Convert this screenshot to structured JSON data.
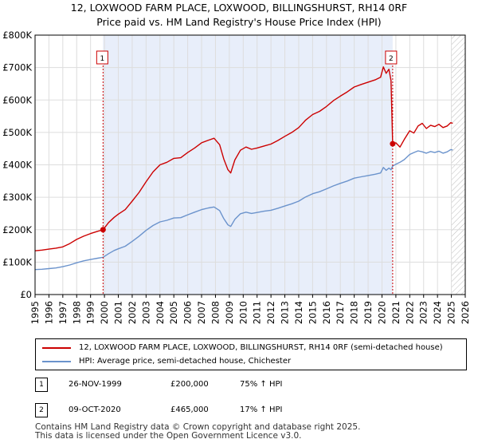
{
  "title_line1": "12, LOXWOOD FARM PLACE, LOXWOOD, BILLINGSHURST, RH14 0RF",
  "title_line2": "Price paid vs. HM Land Registry's House Price Index (HPI)",
  "colors": {
    "price_line": "#cc0000",
    "hpi_line": "#6b93cc",
    "shade": "#e8eefa",
    "grid": "#dddddd",
    "hatch": "#bbbbbb"
  },
  "chart_data": {
    "type": "line",
    "xlim": [
      1995,
      2026
    ],
    "ylim": [
      0,
      800000
    ],
    "y_ticks": [
      {
        "value": 0,
        "label": "£0"
      },
      {
        "value": 100000,
        "label": "£100K"
      },
      {
        "value": 200000,
        "label": "£200K"
      },
      {
        "value": 300000,
        "label": "£300K"
      },
      {
        "value": 400000,
        "label": "£400K"
      },
      {
        "value": 500000,
        "label": "£500K"
      },
      {
        "value": 600000,
        "label": "£600K"
      },
      {
        "value": 700000,
        "label": "£700K"
      },
      {
        "value": 800000,
        "label": "£800K"
      }
    ],
    "x_ticks": [
      "1995",
      "1996",
      "1997",
      "1998",
      "1999",
      "2000",
      "2001",
      "2002",
      "2003",
      "2004",
      "2005",
      "2006",
      "2007",
      "2008",
      "2009",
      "2010",
      "2011",
      "2012",
      "2013",
      "2014",
      "2015",
      "2016",
      "2017",
      "2018",
      "2019",
      "2020",
      "2021",
      "2022",
      "2023",
      "2024",
      "2025",
      "2026"
    ],
    "shaded_period": [
      1999.9,
      2020.77
    ],
    "future_hatch_from": 2025.0,
    "series": [
      {
        "name": "12, LOXWOOD FARM PLACE, LOXWOOD, BILLINGSHURST, RH14 0RF (semi-detached house)",
        "color": "#cc0000",
        "x": [
          1995.0,
          1995.5,
          1996.0,
          1996.5,
          1997.0,
          1997.5,
          1998.0,
          1998.5,
          1999.0,
          1999.5,
          1999.9,
          2000.3,
          2000.7,
          2001.0,
          2001.5,
          2002.0,
          2002.5,
          2003.0,
          2003.5,
          2004.0,
          2004.5,
          2005.0,
          2005.5,
          2006.0,
          2006.5,
          2007.0,
          2007.5,
          2007.9,
          2008.3,
          2008.6,
          2008.9,
          2009.1,
          2009.4,
          2009.8,
          2010.2,
          2010.6,
          2011.0,
          2011.5,
          2012.0,
          2012.5,
          2013.0,
          2013.5,
          2014.0,
          2014.5,
          2015.0,
          2015.5,
          2016.0,
          2016.5,
          2017.0,
          2017.5,
          2018.0,
          2018.5,
          2019.0,
          2019.5,
          2019.9,
          2020.1,
          2020.3,
          2020.5,
          2020.65,
          2020.77,
          2021.0,
          2021.3,
          2021.6,
          2022.0,
          2022.3,
          2022.6,
          2022.9,
          2023.2,
          2023.5,
          2023.8,
          2024.1,
          2024.4,
          2024.7,
          2024.95,
          2025.1
        ],
        "y": [
          135000,
          137000,
          140000,
          143000,
          147000,
          157000,
          170000,
          180000,
          188000,
          195000,
          200000,
          222000,
          238000,
          248000,
          262000,
          288000,
          315000,
          348000,
          378000,
          400000,
          408000,
          420000,
          422000,
          438000,
          452000,
          468000,
          476000,
          482000,
          462000,
          418000,
          385000,
          375000,
          415000,
          445000,
          455000,
          448000,
          452000,
          458000,
          464000,
          475000,
          488000,
          500000,
          515000,
          538000,
          555000,
          565000,
          580000,
          598000,
          612000,
          625000,
          640000,
          648000,
          655000,
          662000,
          670000,
          702000,
          682000,
          695000,
          660000,
          465000,
          468000,
          455000,
          478000,
          505000,
          498000,
          520000,
          528000,
          512000,
          522000,
          518000,
          525000,
          515000,
          520000,
          530000,
          528000
        ]
      },
      {
        "name": "HPI: Average price, semi-detached house, Chichester",
        "color": "#6b93cc",
        "x": [
          1995.0,
          1995.5,
          1996.0,
          1996.5,
          1997.0,
          1997.5,
          1998.0,
          1998.5,
          1999.0,
          1999.5,
          1999.9,
          2000.3,
          2000.7,
          2001.0,
          2001.5,
          2002.0,
          2002.5,
          2003.0,
          2003.5,
          2004.0,
          2004.5,
          2005.0,
          2005.5,
          2006.0,
          2006.5,
          2007.0,
          2007.5,
          2007.9,
          2008.3,
          2008.6,
          2008.9,
          2009.1,
          2009.4,
          2009.8,
          2010.2,
          2010.6,
          2011.0,
          2011.5,
          2012.0,
          2012.5,
          2013.0,
          2013.5,
          2014.0,
          2014.5,
          2015.0,
          2015.5,
          2016.0,
          2016.5,
          2017.0,
          2017.5,
          2018.0,
          2018.5,
          2019.0,
          2019.5,
          2019.9,
          2020.1,
          2020.3,
          2020.5,
          2020.65,
          2020.77,
          2021.0,
          2021.3,
          2021.6,
          2022.0,
          2022.3,
          2022.6,
          2022.9,
          2023.2,
          2023.5,
          2023.8,
          2024.1,
          2024.4,
          2024.7,
          2024.95,
          2025.1
        ],
        "y": [
          77000,
          78000,
          80000,
          82000,
          86000,
          91000,
          98000,
          104000,
          108000,
          112000,
          115000,
          126000,
          136000,
          141000,
          149000,
          164000,
          180000,
          198000,
          213000,
          224000,
          229000,
          236000,
          237000,
          246000,
          254000,
          262000,
          267000,
          270000,
          259000,
          234000,
          215000,
          210000,
          232000,
          249000,
          254000,
          250000,
          253000,
          257000,
          260000,
          266000,
          273000,
          280000,
          288000,
          301000,
          311000,
          317000,
          326000,
          335000,
          343000,
          350000,
          359000,
          363000,
          367000,
          371000,
          375000,
          392000,
          383000,
          390000,
          385000,
          396000,
          402000,
          408000,
          416000,
          432000,
          438000,
          443000,
          440000,
          436000,
          441000,
          438000,
          442000,
          436000,
          440000,
          447000,
          446000
        ]
      }
    ],
    "markers": [
      {
        "label": "1",
        "x": 1999.9,
        "y": 200000
      },
      {
        "label": "2",
        "x": 2020.77,
        "y": 465000
      }
    ],
    "legend_position": "below"
  },
  "legend": {
    "entry1": "12, LOXWOOD FARM PLACE, LOXWOOD, BILLINGSHURST, RH14 0RF (semi-detached house)",
    "entry2": "HPI: Average price, semi-detached house, Chichester"
  },
  "transactions": [
    {
      "label": "1",
      "date": "26-NOV-1999",
      "price": "£200,000",
      "hpi": "75% ↑ HPI"
    },
    {
      "label": "2",
      "date": "09-OCT-2020",
      "price": "£465,000",
      "hpi": "17% ↑ HPI"
    }
  ],
  "footer": {
    "line1": "Contains HM Land Registry data © Crown copyright and database right 2025.",
    "line2": "This data is licensed under the Open Government Licence v3.0."
  }
}
